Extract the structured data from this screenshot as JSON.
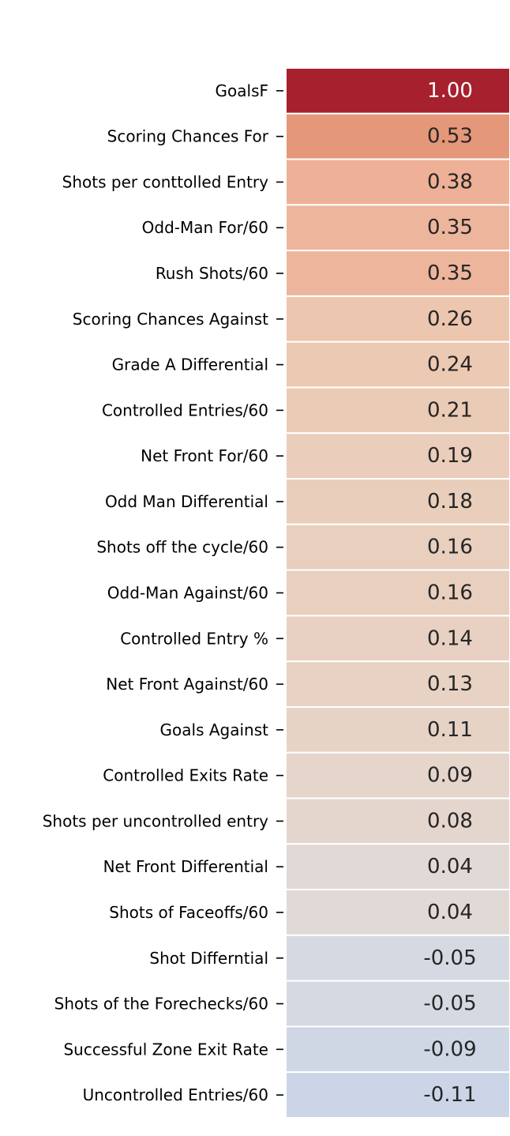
{
  "chart_data": {
    "type": "heatmap",
    "title": "",
    "xlabel": "",
    "ylabel": "",
    "colormap": "diverging blue-red (coolwarm-style)",
    "value_range": [
      -1,
      1
    ],
    "grid": false,
    "legend": "none",
    "rows": [
      "GoalsF",
      "Scoring Chances For",
      "Shots per conttolled Entry",
      "Odd-Man For/60",
      "Rush Shots/60",
      "Scoring Chances Against",
      "Grade A Differential",
      "Controlled Entries/60",
      "Net Front For/60",
      "Odd Man Differential",
      "Shots off the cycle/60",
      "Odd-Man Against/60",
      "Controlled Entry %",
      "Net Front Against/60",
      "Goals Against",
      "Controlled Exits Rate",
      "Shots per uncontrolled entry",
      "Net Front Differential",
      "Shots of Faceoffs/60",
      "Shot Differntial",
      "Shots of the Forechecks/60",
      "Successful Zone Exit Rate",
      "Uncontrolled Entries/60"
    ],
    "values": [
      1.0,
      0.53,
      0.38,
      0.35,
      0.35,
      0.26,
      0.24,
      0.21,
      0.19,
      0.18,
      0.16,
      0.16,
      0.14,
      0.13,
      0.11,
      0.09,
      0.08,
      0.04,
      0.04,
      -0.05,
      -0.05,
      -0.09,
      -0.11
    ],
    "value_labels": [
      "1.00",
      "0.53",
      "0.38",
      "0.35",
      "0.35",
      "0.26",
      "0.24",
      "0.21",
      "0.19",
      "0.18",
      "0.16",
      "0.16",
      "0.14",
      "0.13",
      "0.11",
      "0.09",
      "0.08",
      "0.04",
      "0.04",
      "-0.05",
      "-0.05",
      "-0.09",
      "-0.11"
    ],
    "colors": {
      "max_positive": "#a6202d",
      "neutral": "#dddddd",
      "max_negative": "#3b4cc0",
      "cell_border": "#ffffff",
      "text_dark": "#262626",
      "text_light": "#ffffff"
    }
  }
}
